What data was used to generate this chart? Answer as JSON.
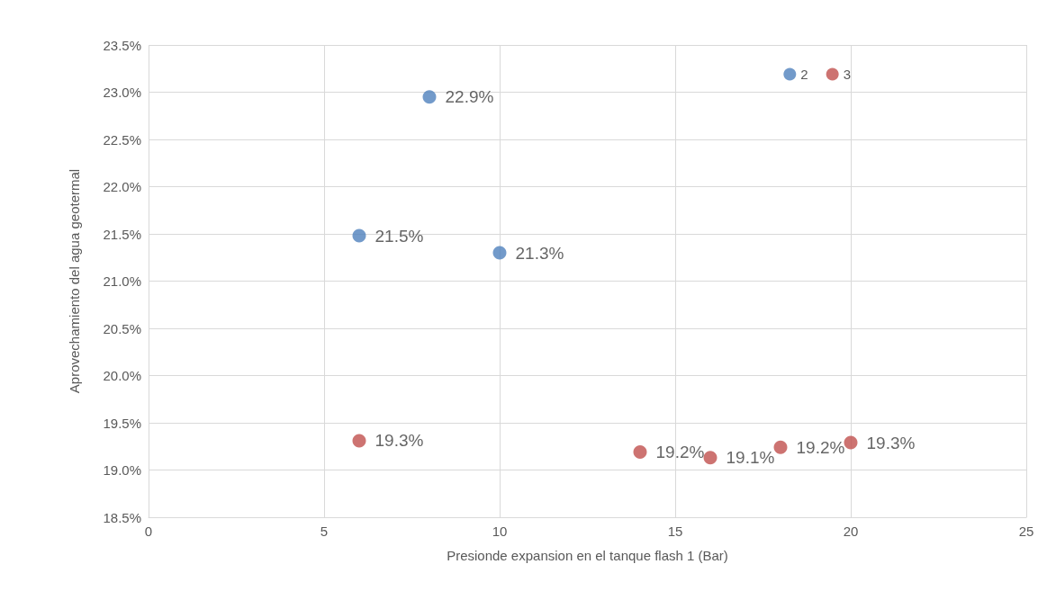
{
  "chart_data": {
    "type": "scatter",
    "xlabel": "Presionde expansion en el tanque flash 1 (Bar)",
    "ylabel": "Aprovechamiento del agua geotermal",
    "xlim": [
      0,
      25
    ],
    "xticks": [
      0,
      5,
      10,
      15,
      20,
      25
    ],
    "ylim": [
      18.5,
      23.5
    ],
    "yticks": [
      {
        "value": 18.5,
        "label": "18.5%"
      },
      {
        "value": 19,
        "label": "19.0%"
      },
      {
        "value": 19.5,
        "label": "19.5%"
      },
      {
        "value": 20,
        "label": "20.0%"
      },
      {
        "value": 20.5,
        "label": "20.5%"
      },
      {
        "value": 21,
        "label": "21.0%"
      },
      {
        "value": 21.5,
        "label": "21.5%"
      },
      {
        "value": 22,
        "label": "22.0%"
      },
      {
        "value": 22.5,
        "label": "22.5%"
      },
      {
        "value": 23,
        "label": "23.0%"
      },
      {
        "value": 23.5,
        "label": "23.5%"
      }
    ],
    "grid": true,
    "legend": "top right",
    "marker": "circle",
    "series": [
      {
        "name": "2",
        "color": "#4f81bd",
        "x": [
          6,
          8,
          10
        ],
        "values": [
          21.48,
          22.95,
          21.3
        ],
        "value_labels": [
          "21.5%",
          "22.9%",
          "21.3%"
        ]
      },
      {
        "name": "3",
        "color": "#c0504d",
        "x": [
          6,
          14,
          16,
          18,
          20
        ],
        "values": [
          19.31,
          19.19,
          19.13,
          19.24,
          19.29
        ],
        "value_labels": [
          "19.3%",
          "19.2%",
          "19.1%",
          "19.2%",
          "19.3%"
        ]
      }
    ]
  }
}
